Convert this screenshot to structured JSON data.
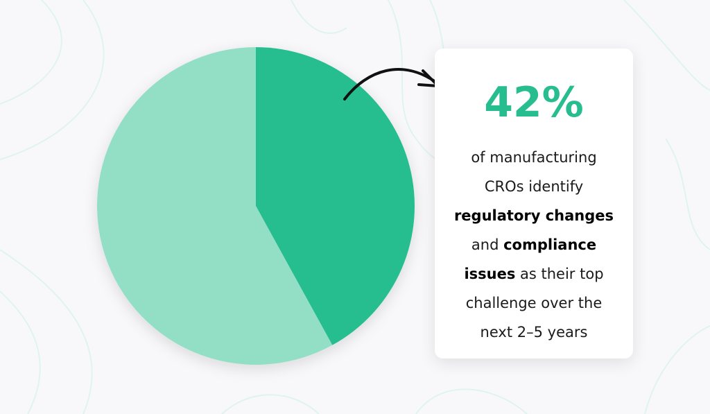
{
  "colors": {
    "accent": "#27bd8f",
    "light": "#93dfc6",
    "background": "#f8f8fa",
    "contour": "#dff4ec"
  },
  "chart_data": {
    "type": "pie",
    "title": "",
    "slices": [
      {
        "value": 42,
        "color": "#27bd8f"
      },
      {
        "value": 58,
        "color": "#93dfc6"
      }
    ],
    "start": "top",
    "direction": "clockwise"
  },
  "callout": {
    "figure": "42%",
    "lines": [
      [
        {
          "text": "of manufacturing",
          "bold": false
        }
      ],
      [
        {
          "text": "CROs identify",
          "bold": false
        }
      ],
      [
        {
          "text": "regulatory changes",
          "bold": true
        }
      ],
      [
        {
          "text": "and ",
          "bold": false
        },
        {
          "text": "compliance",
          "bold": true
        }
      ],
      [
        {
          "text": "issues",
          "bold": true
        },
        {
          "text": " as their top",
          "bold": false
        }
      ],
      [
        {
          "text": "challenge over the",
          "bold": false
        }
      ],
      [
        {
          "text": "next 2–5 years",
          "bold": false
        }
      ]
    ]
  },
  "icons": {
    "arrow": "curved-arrow-icon"
  }
}
